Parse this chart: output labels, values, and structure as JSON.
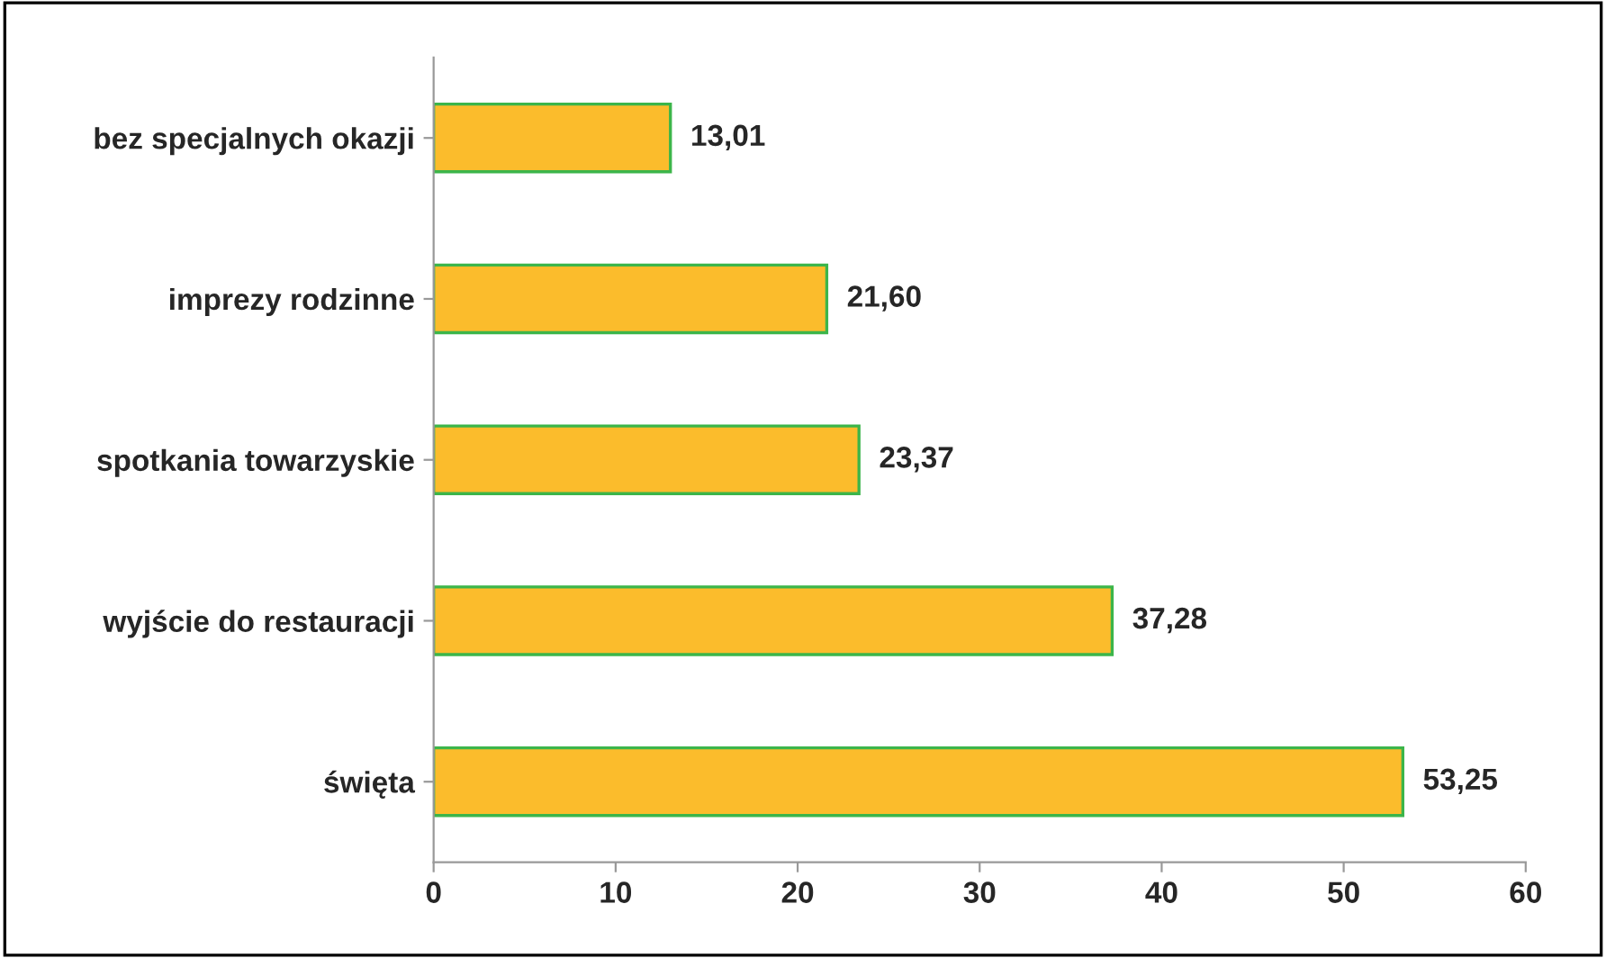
{
  "chart_data": {
    "type": "bar",
    "orientation": "horizontal",
    "categories": [
      "bez specjalnych okazji",
      "imprezy rodzinne",
      "spotkania towarzyskie",
      "wyjście do restauracji",
      "święta"
    ],
    "values": [
      13.01,
      21.6,
      23.37,
      37.28,
      53.25
    ],
    "value_labels": [
      "13,01",
      "21,60",
      "23,37",
      "37,28",
      "53,25"
    ],
    "color": "#fbbc2c",
    "xlim": [
      0,
      60
    ],
    "xticks": [
      0,
      10,
      20,
      30,
      40,
      50,
      60
    ],
    "grid": false,
    "legend": false
  }
}
